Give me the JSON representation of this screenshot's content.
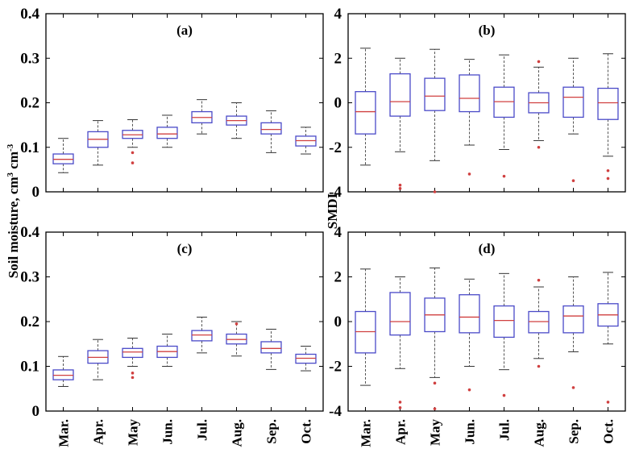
{
  "chart_data": {
    "type": "boxplot",
    "ylabels": {
      "left": {
        "main": "Soil moisture, cm",
        "sup1": "3",
        "mid": " cm",
        "sup2": "-3"
      },
      "right": "SMDI"
    },
    "xcategories": [
      "Mar.",
      "Apr.",
      "May",
      "Jun.",
      "Jul.",
      "Aug.",
      "Sep.",
      "Oct."
    ],
    "colors": {
      "box": "#4a4ac8",
      "median": "#d04040",
      "outlier": "#d04040",
      "whisker": "#555555"
    },
    "panels": [
      {
        "label": "(a)",
        "ylim": [
          0,
          0.4
        ],
        "yticks": [
          "0",
          "0.1",
          "0.2",
          "0.3",
          "0.4"
        ],
        "ytick_values": [
          0,
          0.1,
          0.2,
          0.3,
          0.4
        ],
        "boxes": [
          {
            "min": 0.043,
            "q1": 0.063,
            "median": 0.073,
            "q3": 0.085,
            "max": 0.12,
            "outliers": []
          },
          {
            "min": 0.06,
            "q1": 0.1,
            "median": 0.118,
            "q3": 0.135,
            "max": 0.16,
            "outliers": []
          },
          {
            "min": 0.1,
            "q1": 0.12,
            "median": 0.128,
            "q3": 0.138,
            "max": 0.162,
            "outliers": [
              0.065,
              0.088
            ]
          },
          {
            "min": 0.1,
            "q1": 0.12,
            "median": 0.13,
            "q3": 0.145,
            "max": 0.172,
            "outliers": []
          },
          {
            "min": 0.13,
            "q1": 0.155,
            "median": 0.167,
            "q3": 0.18,
            "max": 0.207,
            "outliers": []
          },
          {
            "min": 0.12,
            "q1": 0.15,
            "median": 0.16,
            "q3": 0.17,
            "max": 0.2,
            "outliers": []
          },
          {
            "min": 0.088,
            "q1": 0.13,
            "median": 0.14,
            "q3": 0.155,
            "max": 0.182,
            "outliers": []
          },
          {
            "min": 0.085,
            "q1": 0.103,
            "median": 0.115,
            "q3": 0.125,
            "max": 0.145,
            "outliers": []
          }
        ]
      },
      {
        "label": "(b)",
        "ylim": [
          -4,
          4
        ],
        "yticks": [
          "-4",
          "-2",
          "0",
          "2",
          "4"
        ],
        "ytick_values": [
          -4,
          -2,
          0,
          2,
          4
        ],
        "boxes": [
          {
            "min": -2.8,
            "q1": -1.4,
            "median": -0.4,
            "q3": 0.5,
            "max": 2.45,
            "outliers": []
          },
          {
            "min": -2.2,
            "q1": -0.6,
            "median": 0.05,
            "q3": 1.3,
            "max": 2.0,
            "outliers": [
              -3.7,
              -3.85
            ]
          },
          {
            "min": -2.6,
            "q1": -0.35,
            "median": 0.3,
            "q3": 1.1,
            "max": 2.4,
            "outliers": [
              -4.0
            ]
          },
          {
            "min": -1.9,
            "q1": -0.4,
            "median": 0.2,
            "q3": 1.25,
            "max": 1.95,
            "outliers": [
              -3.2
            ]
          },
          {
            "min": -2.1,
            "q1": -0.65,
            "median": 0.05,
            "q3": 0.7,
            "max": 2.15,
            "outliers": [
              -3.3
            ]
          },
          {
            "min": -1.7,
            "q1": -0.45,
            "median": 0.0,
            "q3": 0.45,
            "max": 1.6,
            "outliers": [
              -2.0,
              1.85
            ]
          },
          {
            "min": -1.4,
            "q1": -0.65,
            "median": 0.25,
            "q3": 0.7,
            "max": 2.0,
            "outliers": [
              -3.5
            ]
          },
          {
            "min": -2.4,
            "q1": -0.75,
            "median": 0.0,
            "q3": 0.65,
            "max": 2.2,
            "outliers": [
              -3.05,
              -3.4
            ]
          }
        ]
      },
      {
        "label": "(c)",
        "ylim": [
          0,
          0.4
        ],
        "yticks": [
          "0",
          "0.1",
          "0.2",
          "0.3",
          "0.4"
        ],
        "ytick_values": [
          0,
          0.1,
          0.2,
          0.3,
          0.4
        ],
        "boxes": [
          {
            "min": 0.055,
            "q1": 0.07,
            "median": 0.08,
            "q3": 0.092,
            "max": 0.122,
            "outliers": []
          },
          {
            "min": 0.07,
            "q1": 0.107,
            "median": 0.12,
            "q3": 0.135,
            "max": 0.16,
            "outliers": []
          },
          {
            "min": 0.1,
            "q1": 0.12,
            "median": 0.132,
            "q3": 0.14,
            "max": 0.163,
            "outliers": [
              0.075,
              0.085
            ]
          },
          {
            "min": 0.1,
            "q1": 0.12,
            "median": 0.133,
            "q3": 0.145,
            "max": 0.172,
            "outliers": []
          },
          {
            "min": 0.13,
            "q1": 0.157,
            "median": 0.17,
            "q3": 0.18,
            "max": 0.21,
            "outliers": []
          },
          {
            "min": 0.123,
            "q1": 0.15,
            "median": 0.16,
            "q3": 0.172,
            "max": 0.2,
            "outliers": [
              0.195
            ]
          },
          {
            "min": 0.093,
            "q1": 0.13,
            "median": 0.14,
            "q3": 0.155,
            "max": 0.183,
            "outliers": []
          },
          {
            "min": 0.09,
            "q1": 0.107,
            "median": 0.118,
            "q3": 0.127,
            "max": 0.145,
            "outliers": []
          }
        ]
      },
      {
        "label": "(d)",
        "ylim": [
          -4,
          4
        ],
        "yticks": [
          "-4",
          "-2",
          "0",
          "2",
          "4"
        ],
        "ytick_values": [
          -4,
          -2,
          0,
          2,
          4
        ],
        "boxes": [
          {
            "min": -2.85,
            "q1": -1.4,
            "median": -0.45,
            "q3": 0.45,
            "max": 2.35,
            "outliers": []
          },
          {
            "min": -2.1,
            "q1": -0.6,
            "median": 0.0,
            "q3": 1.3,
            "max": 2.0,
            "outliers": [
              -3.6,
              -3.85
            ]
          },
          {
            "min": -2.5,
            "q1": -0.45,
            "median": 0.3,
            "q3": 1.05,
            "max": 2.4,
            "outliers": [
              -3.9,
              -2.75
            ]
          },
          {
            "min": -2.0,
            "q1": -0.5,
            "median": 0.2,
            "q3": 1.2,
            "max": 1.9,
            "outliers": [
              -3.05
            ]
          },
          {
            "min": -2.15,
            "q1": -0.7,
            "median": 0.05,
            "q3": 0.7,
            "max": 2.15,
            "outliers": [
              -3.3
            ]
          },
          {
            "min": -1.65,
            "q1": -0.5,
            "median": 0.0,
            "q3": 0.45,
            "max": 1.55,
            "outliers": [
              -2.0,
              1.85
            ]
          },
          {
            "min": -1.35,
            "q1": -0.5,
            "median": 0.25,
            "q3": 0.7,
            "max": 2.0,
            "outliers": [
              -2.95
            ]
          },
          {
            "min": -1.0,
            "q1": -0.2,
            "median": 0.3,
            "q3": 0.8,
            "max": 2.2,
            "outliers": [
              -3.6
            ]
          }
        ]
      }
    ]
  }
}
